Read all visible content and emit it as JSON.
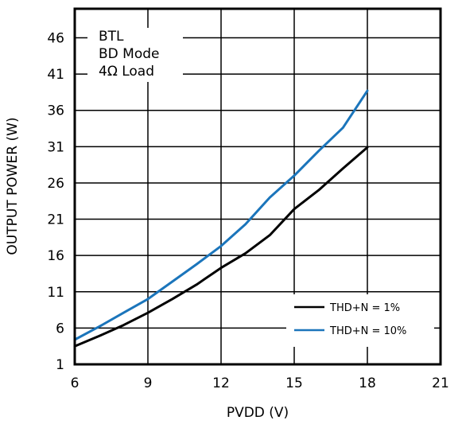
{
  "chart_data": {
    "type": "line",
    "xlabel": "PVDD (V)",
    "ylabel": "OUTPUT POWER (W)",
    "xlim": [
      6,
      21
    ],
    "ylim": [
      1,
      50
    ],
    "x_ticks": [
      6,
      9,
      12,
      15,
      18,
      21
    ],
    "y_ticks": [
      1,
      6,
      11,
      16,
      21,
      26,
      31,
      36,
      41,
      46
    ],
    "grid": true,
    "legend_placement": "bottom-right",
    "annotation": [
      "BTL",
      "BD Mode",
      "4Ω Load"
    ],
    "series": [
      {
        "name": "THD+N = 1%",
        "color": "#000000",
        "x": [
          6,
          7,
          8,
          9,
          10,
          11,
          12,
          13,
          14,
          15,
          16,
          17,
          18
        ],
        "y": [
          3.5,
          4.9,
          6.4,
          8.1,
          10,
          12,
          14.3,
          16.3,
          18.8,
          22.4,
          25,
          28,
          30.9
        ]
      },
      {
        "name": "THD+N = 10%",
        "color": "#1b75bb",
        "x": [
          6,
          7,
          8,
          9,
          10,
          11,
          12,
          13,
          14,
          15,
          16,
          17,
          18
        ],
        "y": [
          4.4,
          6.2,
          8.1,
          10,
          12.4,
          14.8,
          17.3,
          20.3,
          24,
          27,
          30.4,
          33.6,
          38.7
        ]
      }
    ]
  }
}
